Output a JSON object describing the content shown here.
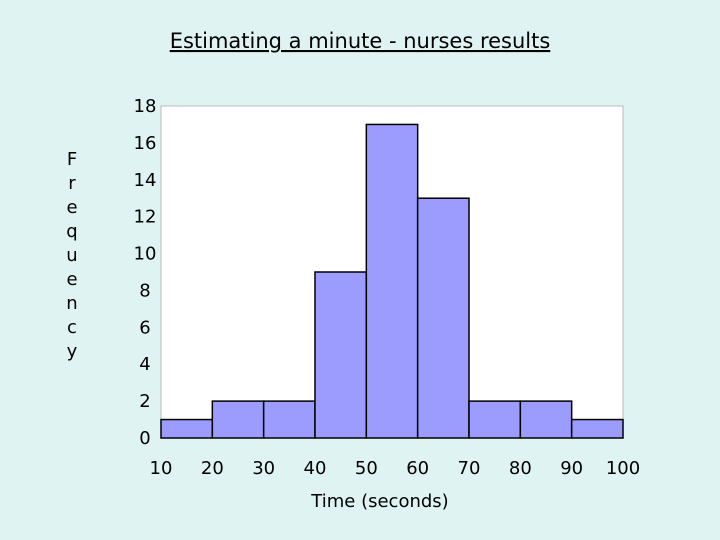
{
  "chart_data": {
    "type": "bar",
    "title": "Estimating a minute - nurses results",
    "xlabel": "Time (seconds)",
    "ylabel": "Frequency",
    "bin_edges": [
      10,
      20,
      30,
      40,
      50,
      60,
      70,
      80,
      90,
      100
    ],
    "x_tick_labels": [
      "10",
      "20",
      "30",
      "40",
      "50",
      "60",
      "70",
      "80",
      "90",
      "100"
    ],
    "values": [
      1,
      2,
      2,
      9,
      17,
      13,
      2,
      2,
      1
    ],
    "y_ticks": [
      0,
      2,
      4,
      6,
      8,
      10,
      12,
      14,
      16,
      18
    ],
    "ylim": [
      0,
      18
    ],
    "xlim": [
      10,
      100
    ],
    "grid": false,
    "bar_color": "#9c9cff",
    "bar_edge_color": "#000000",
    "plot_background": "#ffffff",
    "page_background": "#dff4f2"
  }
}
